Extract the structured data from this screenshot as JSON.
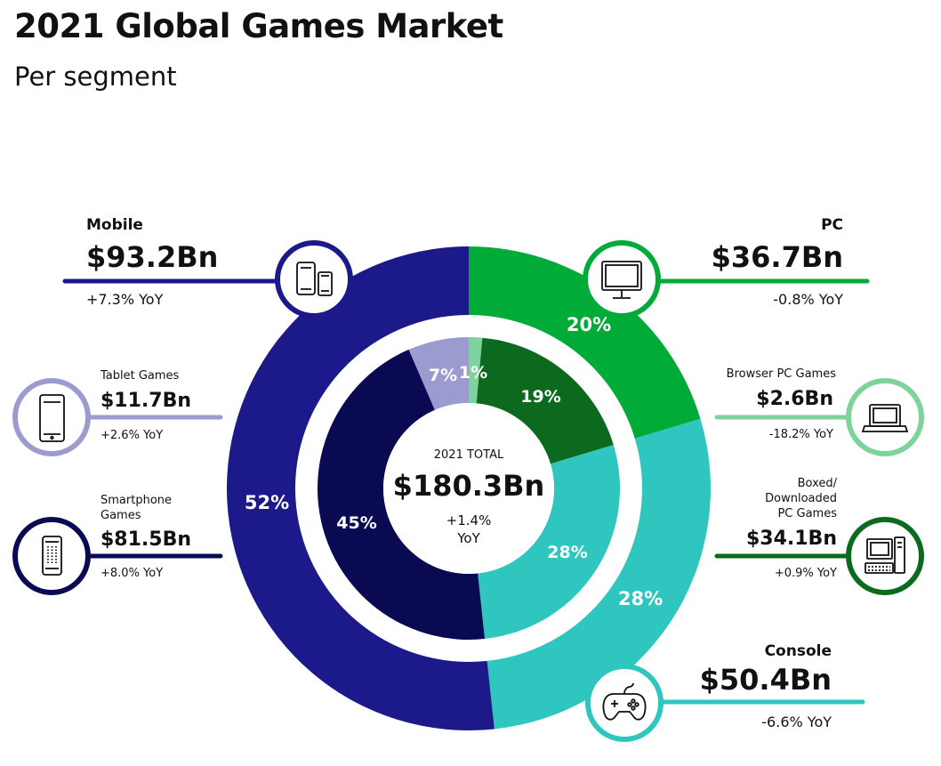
{
  "title": "2021 Global Games Market",
  "subtitle": "Per segment",
  "colors": {
    "mobile": "#1c1a8a",
    "smartphone": "#0a0a52",
    "tablet": "#9b9bd0",
    "pc": "#00ab38",
    "browser_pc": "#7dd39b",
    "boxed_pc": "#0c6a1e",
    "console": "#2ec6be"
  },
  "chart_data": {
    "type": "pie",
    "title": "2021 Global Games Market",
    "subtitle": "Per segment",
    "total": {
      "label": "2021 TOTAL",
      "value": "$180.3Bn",
      "growth": "+1.4%",
      "growth_unit": "YoY"
    },
    "outer_ring": [
      {
        "name": "Mobile",
        "value": 93.2,
        "value_label": "$93.2Bn",
        "yoy": "+7.3% YoY",
        "pct": "52%",
        "color": "#1c1a8a",
        "icon": "mobile-devices-icon"
      },
      {
        "name": "PC",
        "value": 36.7,
        "value_label": "$36.7Bn",
        "yoy": "-0.8% YoY",
        "pct": "20%",
        "color": "#00ab38",
        "icon": "monitor-icon"
      },
      {
        "name": "Console",
        "value": 50.4,
        "value_label": "$50.4Bn",
        "yoy": "-6.6% YoY",
        "pct": "28%",
        "color": "#2ec6be",
        "icon": "gamepad-icon"
      }
    ],
    "inner_ring": [
      {
        "name": "Smartphone Games",
        "value": 81.5,
        "value_label": "$81.5Bn",
        "yoy": "+8.0% YoY",
        "pct": "45%",
        "color": "#0a0a52"
      },
      {
        "name": "Tablet Games",
        "value": 11.7,
        "value_label": "$11.7Bn",
        "yoy": "+2.6% YoY",
        "pct": "7%",
        "color": "#9b9bd0"
      },
      {
        "name": "Browser PC Games",
        "value": 2.6,
        "value_label": "$2.6Bn",
        "yoy": "-18.2% YoY",
        "pct": "1%",
        "color": "#7dd39b"
      },
      {
        "name": "Boxed/ Downloaded PC Games",
        "value": 34.1,
        "value_label": "$34.1Bn",
        "yoy": "+0.9% YoY",
        "pct": "19%",
        "color": "#0c6a1e"
      },
      {
        "name": "Console",
        "value": 50.4,
        "value_label": "$50.4Bn",
        "yoy": "-6.6% YoY",
        "pct": "28%",
        "color": "#2ec6be"
      }
    ]
  },
  "callouts": {
    "mobile": {
      "name": "Mobile",
      "value": "$93.2Bn",
      "yoy": "+7.3% YoY"
    },
    "tablet": {
      "name": "Tablet Games",
      "value": "$11.7Bn",
      "yoy": "+2.6% YoY"
    },
    "smartphone": {
      "name_line1": "Smartphone",
      "name_line2": "Games",
      "value": "$81.5Bn",
      "yoy": "+8.0% YoY"
    },
    "pc": {
      "name": "PC",
      "value": "$36.7Bn",
      "yoy": "-0.8% YoY"
    },
    "browser": {
      "name": "Browser PC Games",
      "value": "$2.6Bn",
      "yoy": "-18.2% YoY"
    },
    "boxed": {
      "name_line1": "Boxed/",
      "name_line2": "Downloaded",
      "name_line3": "PC Games",
      "value": "$34.1Bn",
      "yoy": "+0.9% YoY"
    },
    "console": {
      "name": "Console",
      "value": "$50.4Bn",
      "yoy": "-6.6% YoY"
    }
  }
}
